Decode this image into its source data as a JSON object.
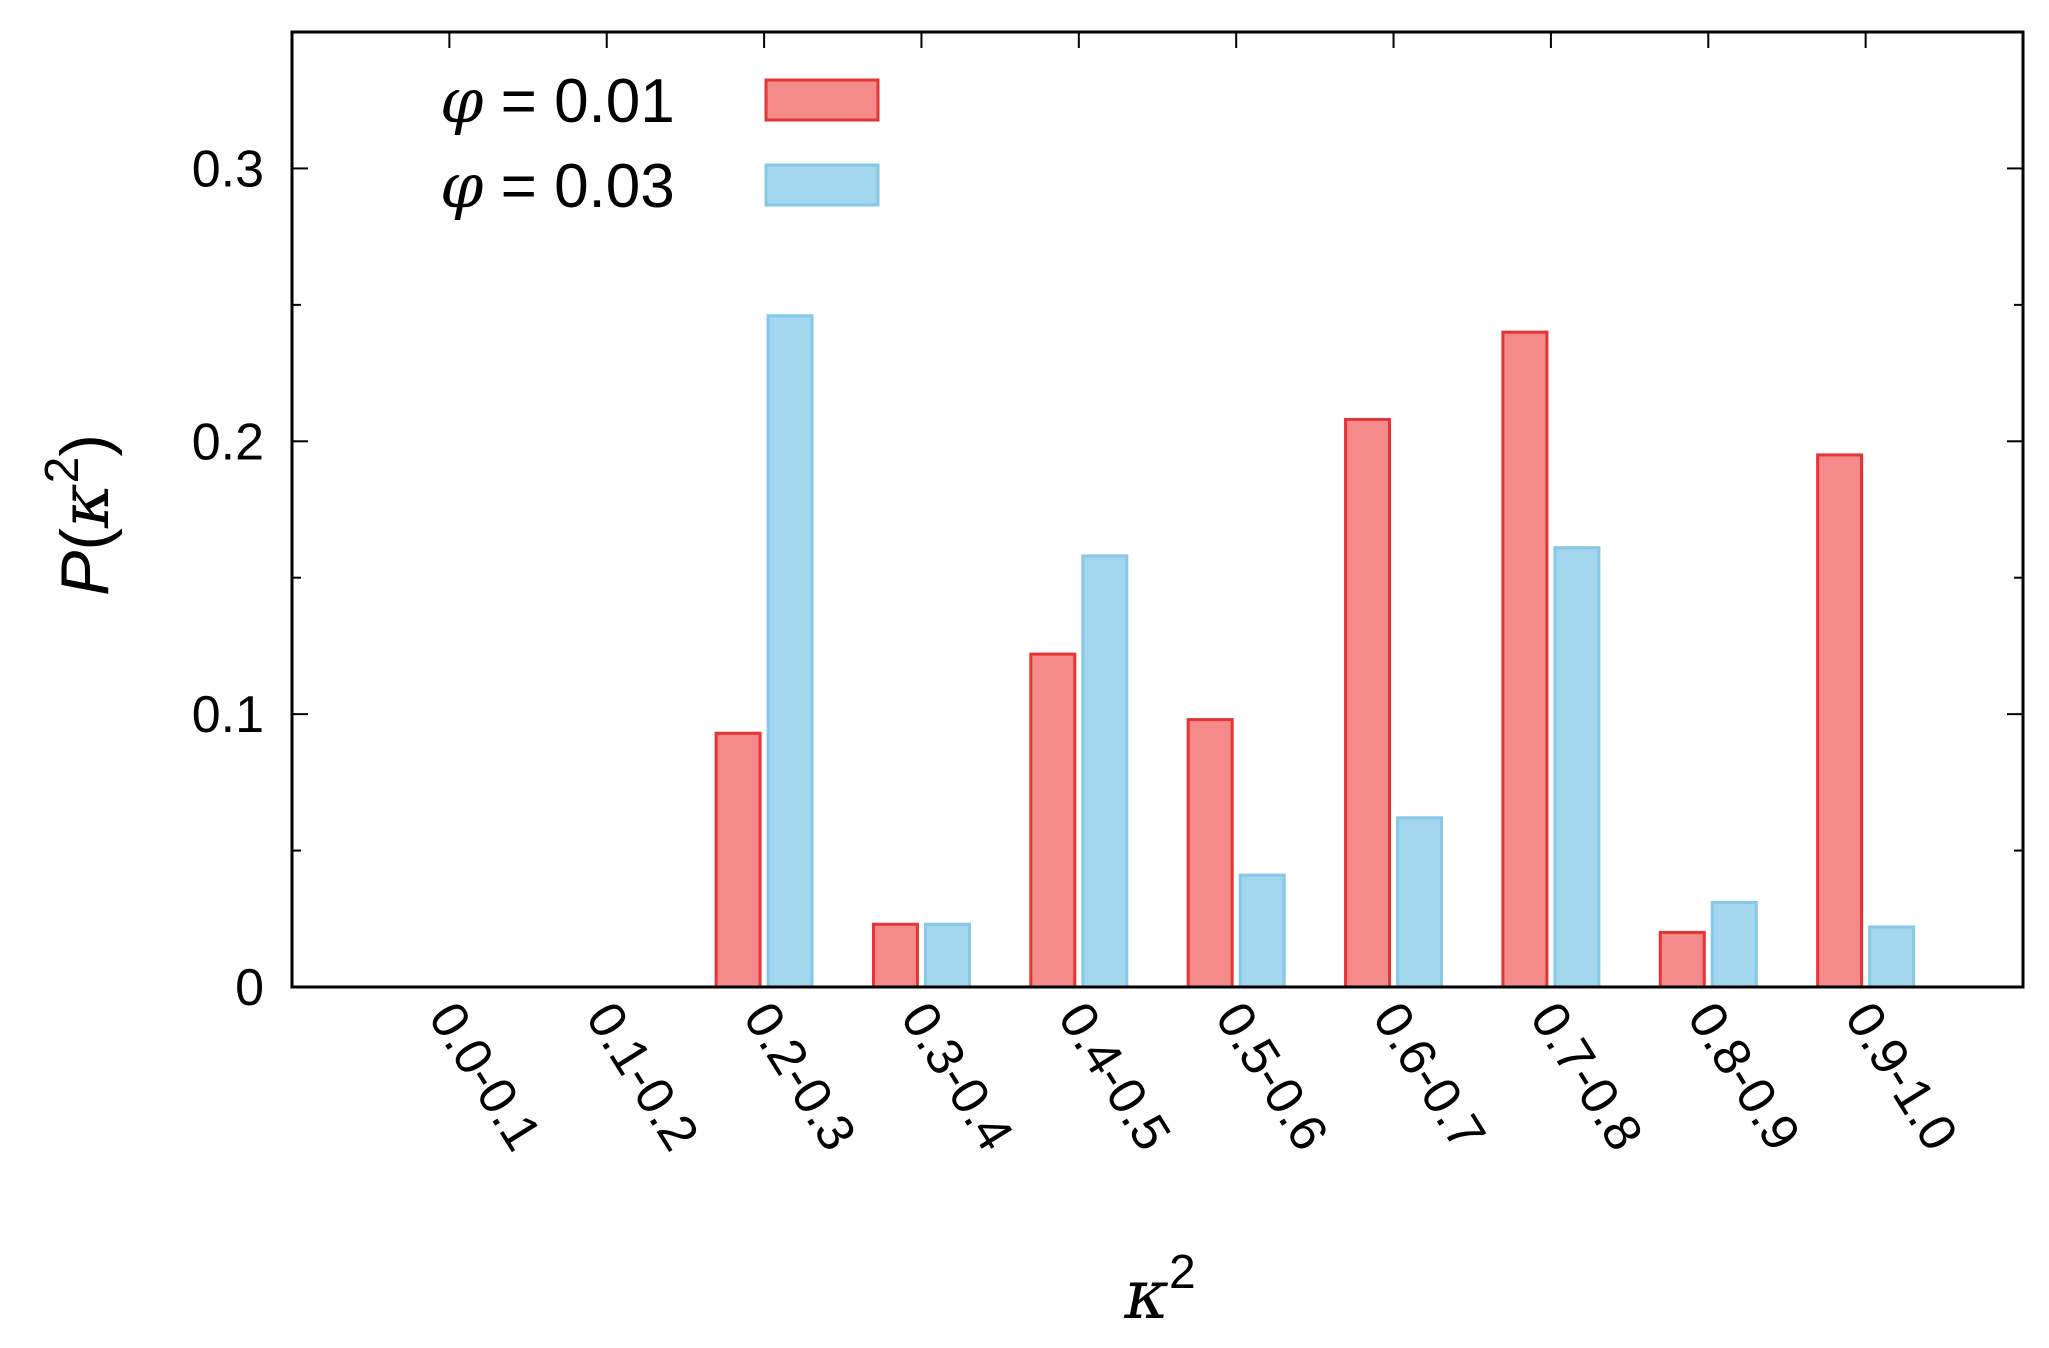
{
  "chart_data": {
    "type": "bar",
    "title": "",
    "xlabel": {
      "base": "κ",
      "sup": "2"
    },
    "ylabel": {
      "pre": "P",
      "base": "κ",
      "sup": "2"
    },
    "categories": [
      "0.0-0.1",
      "0.1-0.2",
      "0.2-0.3",
      "0.3-0.4",
      "0.4-0.5",
      "0.5-0.6",
      "0.6-0.7",
      "0.7-0.8",
      "0.8-0.9",
      "0.9-1.0"
    ],
    "ylim": [
      0,
      0.35
    ],
    "yticks": [
      {
        "value": 0,
        "label": "0"
      },
      {
        "value": 0.1,
        "label": "0.1"
      },
      {
        "value": 0.2,
        "label": "0.2"
      },
      {
        "value": 0.3,
        "label": "0.3"
      }
    ],
    "y_minor_ticks": [
      0.05,
      0.15,
      0.25
    ],
    "legend_position": "top-left",
    "series": [
      {
        "name": "φ = 0.01",
        "legend": {
          "symbol": "φ",
          "text": " = 0.01"
        },
        "fill": "#f48a8a",
        "stroke": "#e53434",
        "values": [
          0,
          0,
          0.093,
          0.023,
          0.122,
          0.098,
          0.208,
          0.24,
          0.02,
          0.195
        ]
      },
      {
        "name": "φ = 0.03",
        "legend": {
          "symbol": "φ",
          "text": " = 0.03"
        },
        "fill": "#a3d7ee",
        "stroke": "#86c8e6",
        "values": [
          0,
          0,
          0.246,
          0.023,
          0.158,
          0.041,
          0.062,
          0.161,
          0.031,
          0.022
        ]
      }
    ]
  }
}
